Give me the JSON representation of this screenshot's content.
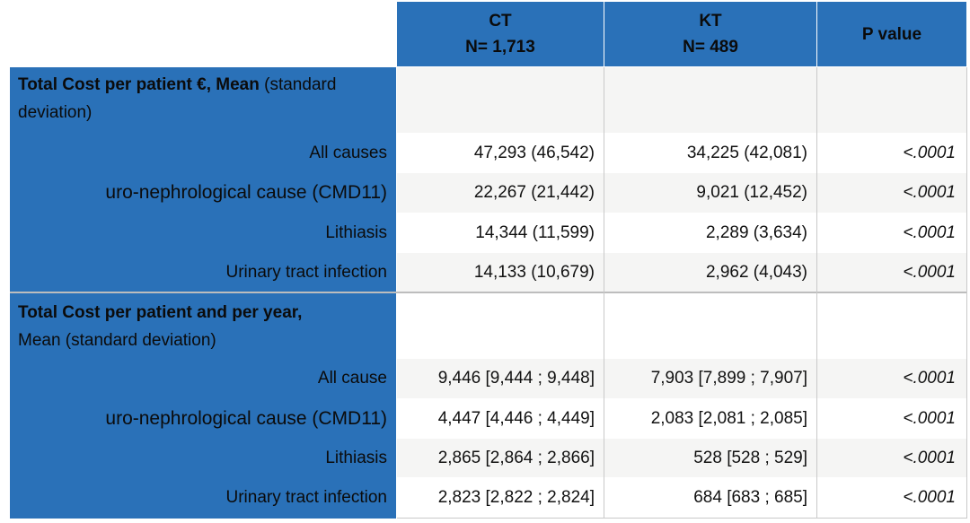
{
  "columns": {
    "ct": {
      "name": "CT",
      "n": "N= 1,713"
    },
    "kt": {
      "name": "KT",
      "n": "N= 489"
    },
    "p": {
      "name": "P value"
    }
  },
  "sections": [
    {
      "title_bold": "Total Cost per patient €, Mean",
      "title_rest": " (standard deviation)",
      "rows": [
        {
          "label": "All causes",
          "ct": "47,293 (46,542)",
          "kt": "34,225 (42,081)",
          "p": "<.0001"
        },
        {
          "label": "uro-nephrological cause (CMD11)",
          "ct": "22,267 (21,442)",
          "kt": "9,021 (12,452)",
          "p": "<.0001"
        },
        {
          "label": "Lithiasis",
          "ct": "14,344 (11,599)",
          "kt": "2,289 (3,634)",
          "p": "<.0001"
        },
        {
          "label": "Urinary tract infection",
          "ct": "14,133 (10,679)",
          "kt": "2,962 (4,043)",
          "p": "<.0001"
        }
      ]
    },
    {
      "title_bold": "Total Cost per patient and per year,",
      "title_rest": "Mean (standard deviation)",
      "rows": [
        {
          "label": "All cause",
          "ct": "9,446 [9,444 ; 9,448]",
          "kt": "7,903 [7,899 ; 7,907]",
          "p": "<.0001"
        },
        {
          "label": "uro-nephrological cause (CMD11)",
          "ct": "4,447 [4,446 ; 4,449]",
          "kt": "2,083 [2,081 ; 2,085]",
          "p": "<.0001"
        },
        {
          "label": "Lithiasis",
          "ct": "2,865 [2,864 ; 2,866]",
          "kt": "528 [528 ; 529]",
          "p": "<.0001"
        },
        {
          "label": "Urinary tract infection",
          "ct": "2,823 [2,822 ; 2,824]",
          "kt": "684 [683 ; 685]",
          "p": "<.0001"
        }
      ]
    }
  ]
}
